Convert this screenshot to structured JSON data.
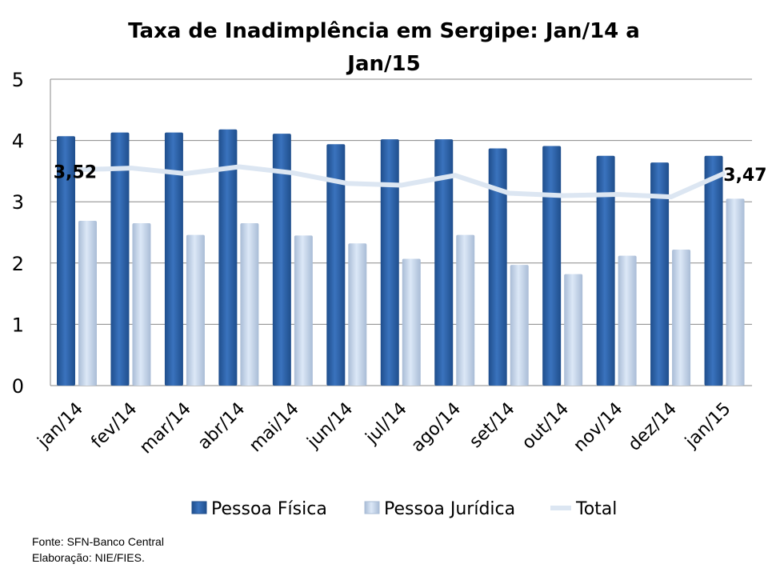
{
  "chart_data": {
    "type": "bar",
    "title": "Taxa de Inadimplência em Sergipe: Jan/14 a Jan/15",
    "title_lines": [
      "Taxa de Inadimplência em Sergipe: Jan/14 a",
      "Jan/15"
    ],
    "categories": [
      "jan/14",
      "fev/14",
      "mar/14",
      "abr/14",
      "mai/14",
      "jun/14",
      "jul/14",
      "ago/14",
      "set/14",
      "out/14",
      "nov/14",
      "dez/14",
      "jan/15"
    ],
    "series": [
      {
        "name": "Pessoa Física",
        "type": "bar",
        "color": "#2E64AA",
        "values": [
          4.07,
          4.13,
          4.13,
          4.18,
          4.11,
          3.94,
          4.02,
          4.02,
          3.87,
          3.91,
          3.75,
          3.64,
          3.75
        ]
      },
      {
        "name": "Pessoa Jurídica",
        "type": "bar",
        "color": "#C6D9F1",
        "values": [
          2.69,
          2.65,
          2.46,
          2.65,
          2.45,
          2.32,
          2.07,
          2.46,
          1.97,
          1.82,
          2.12,
          2.22,
          3.05
        ]
      },
      {
        "name": "Total",
        "type": "line",
        "color": "#DCE6F2",
        "values": [
          3.52,
          3.55,
          3.46,
          3.57,
          3.47,
          3.3,
          3.27,
          3.43,
          3.14,
          3.1,
          3.12,
          3.08,
          3.47
        ]
      }
    ],
    "data_labels": [
      {
        "category": "jan/14",
        "text": "3,52"
      },
      {
        "category": "jan/15",
        "text": "3,47"
      }
    ],
    "yticks": [
      "0",
      "1",
      "2",
      "3",
      "4",
      "5"
    ],
    "ylim": [
      0,
      5
    ],
    "xlabel": "",
    "ylabel": "",
    "grid": true,
    "legend_position": "bottom"
  },
  "source": {
    "line1": "Fonte: SFN-Banco Central",
    "line2": "Elaboração: NIE/FIES."
  }
}
